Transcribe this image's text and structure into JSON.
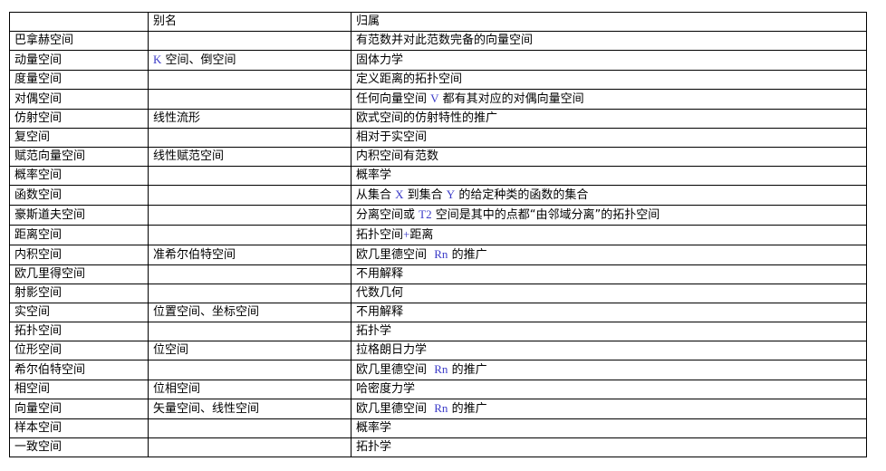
{
  "page": {
    "background": "#ffffff"
  },
  "colors": {
    "border": "#000000",
    "text": "#000000",
    "latin_text": "#3b3bc8",
    "background": "#ffffff"
  },
  "table": {
    "headers": {
      "name": "",
      "alias": "别名",
      "category": "归属"
    },
    "rows": [
      {
        "name": "巴拿赫空间",
        "alias": "",
        "category": "有范数并对此范数完备的向量空间"
      },
      {
        "name": "动量空间",
        "alias": "K 空间、倒空间",
        "category": "固体力学"
      },
      {
        "name": "度量空间",
        "alias": "",
        "category": "定义距离的拓扑空间"
      },
      {
        "name": "对偶空间",
        "alias": "",
        "category": "任何向量空间 V 都有其对应的对偶向量空间"
      },
      {
        "name": "仿射空间",
        "alias": "线性流形",
        "category": "欧式空间的仿射特性的推广"
      },
      {
        "name": "复空间",
        "alias": "",
        "category": "相对于实空间"
      },
      {
        "name": "赋范向量空间",
        "alias": "线性赋范空间",
        "category": "内积空间有范数"
      },
      {
        "name": "概率空间",
        "alias": "",
        "category": "概率学"
      },
      {
        "name": "函数空间",
        "alias": "",
        "category": "从集合 X 到集合 Y 的给定种类的函数的集合"
      },
      {
        "name": "豪斯道夫空间",
        "alias": "",
        "category": "分离空间或 T2 空间是其中的点都“由邻域分离”的拓扑空间"
      },
      {
        "name": "距离空间",
        "alias": "",
        "category": "拓扑空间+距离"
      },
      {
        "name": "内积空间",
        "alias": "准希尔伯特空间",
        "category": "欧几里德空间  Rn 的推广"
      },
      {
        "name": "欧几里得空间",
        "alias": "",
        "category": "不用解释"
      },
      {
        "name": "射影空间",
        "alias": "",
        "category": "代数几何"
      },
      {
        "name": "实空间",
        "alias": "位置空间、坐标空间",
        "category": "不用解释"
      },
      {
        "name": "拓扑空间",
        "alias": "",
        "category": "拓扑学"
      },
      {
        "name": "位形空间",
        "alias": "位空间",
        "category": "拉格朗日力学"
      },
      {
        "name": "希尔伯特空间",
        "alias": "",
        "category": "欧几里德空间  Rn 的推广"
      },
      {
        "name": "相空间",
        "alias": "位相空间",
        "category": "哈密度力学"
      },
      {
        "name": "向量空间",
        "alias": "矢量空间、线性空间",
        "category": "欧几里德空间  Rn 的推广"
      },
      {
        "name": "样本空间",
        "alias": "",
        "category": "概率学"
      },
      {
        "name": "一致空间",
        "alias": "",
        "category": "拓扑学"
      }
    ]
  }
}
